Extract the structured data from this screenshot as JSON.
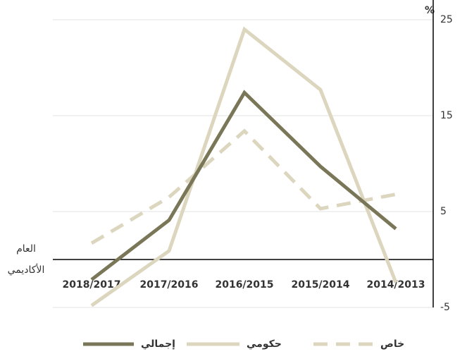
{
  "chart_data": {
    "type": "line",
    "x_label": "العام الأكاديمي",
    "y_label": "%",
    "categories": [
      "2018/2017",
      "2017/2016",
      "2016/2015",
      "2015/2014",
      "2014/2013"
    ],
    "series": [
      {
        "name": "إجمالي",
        "color": "#7a7658",
        "dashed": false,
        "values": [
          -2.1,
          4.1,
          17.4,
          9.7,
          3.2
        ]
      },
      {
        "name": "حكومي",
        "color": "#dcd6bf",
        "dashed": false,
        "values": [
          -4.8,
          0.9,
          24.0,
          17.7,
          -2.4
        ]
      },
      {
        "name": "خاص",
        "color": "#dcd6bf",
        "dashed": true,
        "values": [
          1.7,
          6.5,
          13.4,
          5.3,
          6.8
        ]
      }
    ],
    "ylim": [
      -5,
      25
    ],
    "yticks": [
      -5,
      5,
      15,
      25
    ],
    "grid": true
  }
}
